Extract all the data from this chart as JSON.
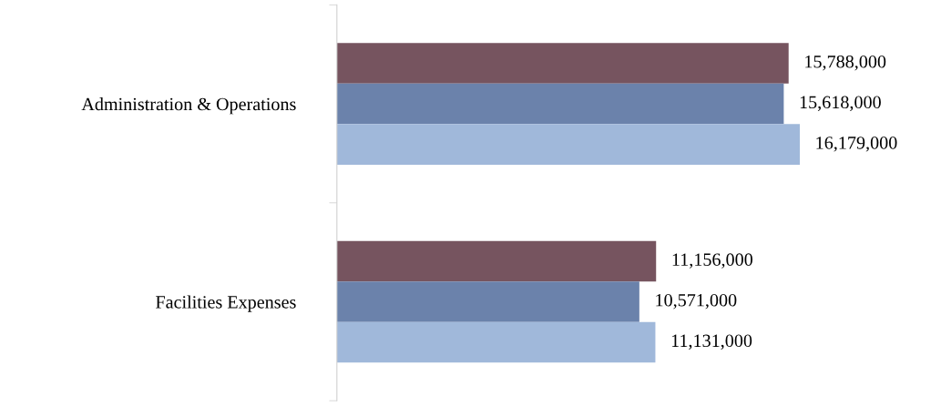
{
  "chart_data": {
    "type": "bar",
    "orientation": "horizontal",
    "categories": [
      "Administration & Operations",
      "Facilities Expenses"
    ],
    "series": [
      {
        "color": "#76545f",
        "values": [
          15788000,
          11156000
        ],
        "value_labels": [
          "15,788,000",
          "11,156,000"
        ]
      },
      {
        "color": "#6b82ab",
        "values": [
          15618000,
          10571000
        ],
        "value_labels": [
          "15,618,000",
          "10,571,000"
        ]
      },
      {
        "color": "#a0b8da",
        "values": [
          16179000,
          11131000
        ],
        "value_labels": [
          "16,179,000",
          "11,131,000"
        ]
      }
    ],
    "tick_labels": "y",
    "legend": false,
    "grid": false
  }
}
